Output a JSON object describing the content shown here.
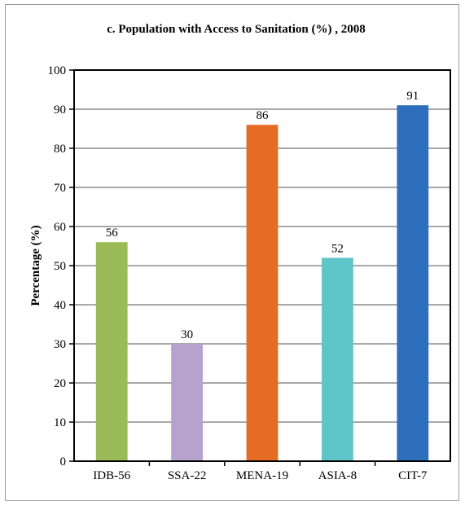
{
  "chart_data": {
    "type": "bar",
    "title": "c. Population with Access to Sanitation (%) , 2008",
    "xlabel": "",
    "ylabel": "Percentage (%)",
    "ylim": [
      0,
      100
    ],
    "yticks": [
      0,
      10,
      20,
      30,
      40,
      50,
      60,
      70,
      80,
      90,
      100
    ],
    "grid": true,
    "legend": "none",
    "categories": [
      "IDB-56",
      "SSA-22",
      "MENA-19",
      "ASIA-8",
      "CIT-7"
    ],
    "values": [
      56,
      30,
      86,
      52,
      91
    ],
    "data_labels": [
      "56",
      "30",
      "86",
      "52",
      "91"
    ],
    "colors": [
      "#9bbb59",
      "#b7a1cd",
      "#e46c24",
      "#5ec5c8",
      "#2e6fbc"
    ]
  }
}
